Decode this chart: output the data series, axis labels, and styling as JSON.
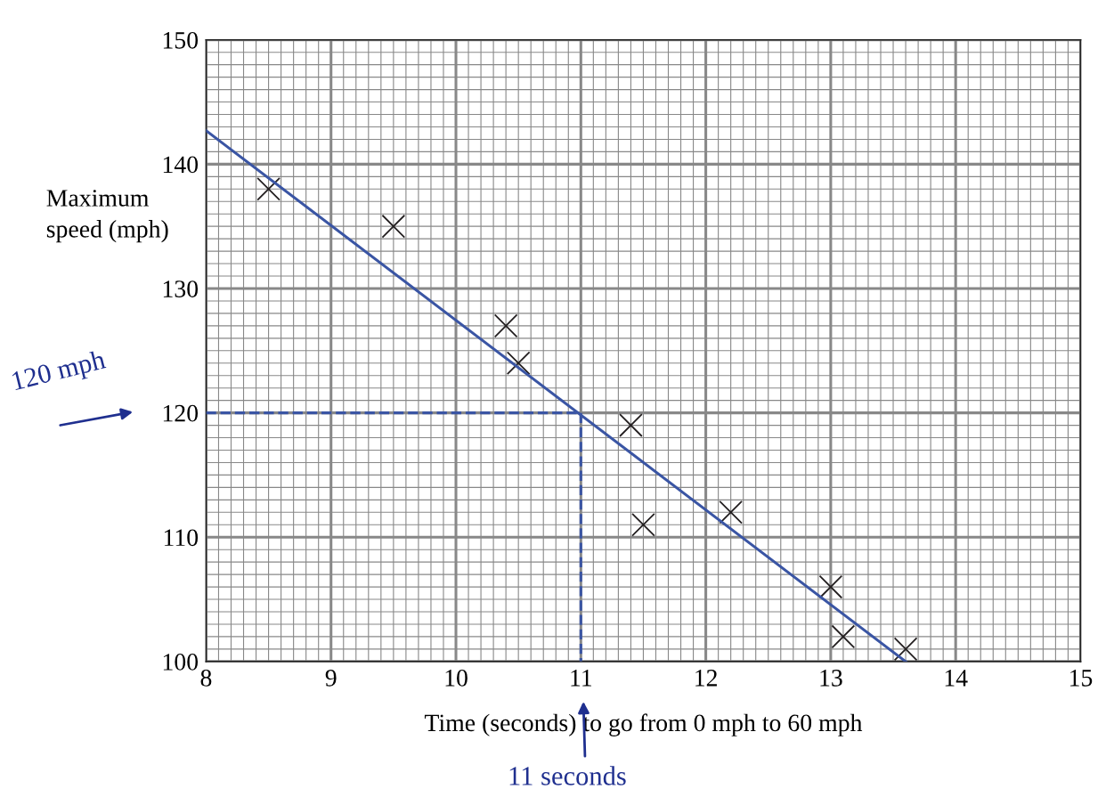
{
  "chart_data": {
    "type": "scatter",
    "xlabel": "Time (seconds) to go from 0 mph to 60 mph",
    "ylabel": "Maximum\nspeed (mph)",
    "xlim": [
      8,
      15
    ],
    "xticks": [
      8,
      9,
      10,
      11,
      12,
      13,
      14,
      15
    ],
    "ylim": [
      100,
      150
    ],
    "yticks": [
      100,
      110,
      120,
      130,
      140,
      150
    ],
    "grid": true,
    "series": [
      {
        "marker": "cross",
        "color": "#231f20",
        "x": [
          8.5,
          9.5,
          10.4,
          10.5,
          11.4,
          11.5,
          12.2,
          13.0,
          13.1,
          13.6
        ],
        "values": [
          138,
          135,
          127,
          124,
          119,
          111,
          112,
          106,
          102,
          101
        ]
      },
      {
        "type": "line",
        "color": "#3a55a4",
        "line_style": "solid",
        "x": [
          8,
          13.6
        ],
        "values": [
          142.7,
          100
        ]
      },
      {
        "type": "line",
        "color": "#3a55a4",
        "line_style": "dashed",
        "x": [
          8,
          11,
          11
        ],
        "values": [
          120,
          120,
          100
        ]
      }
    ],
    "annotations": [
      "120 mph",
      "11 seconds"
    ]
  }
}
